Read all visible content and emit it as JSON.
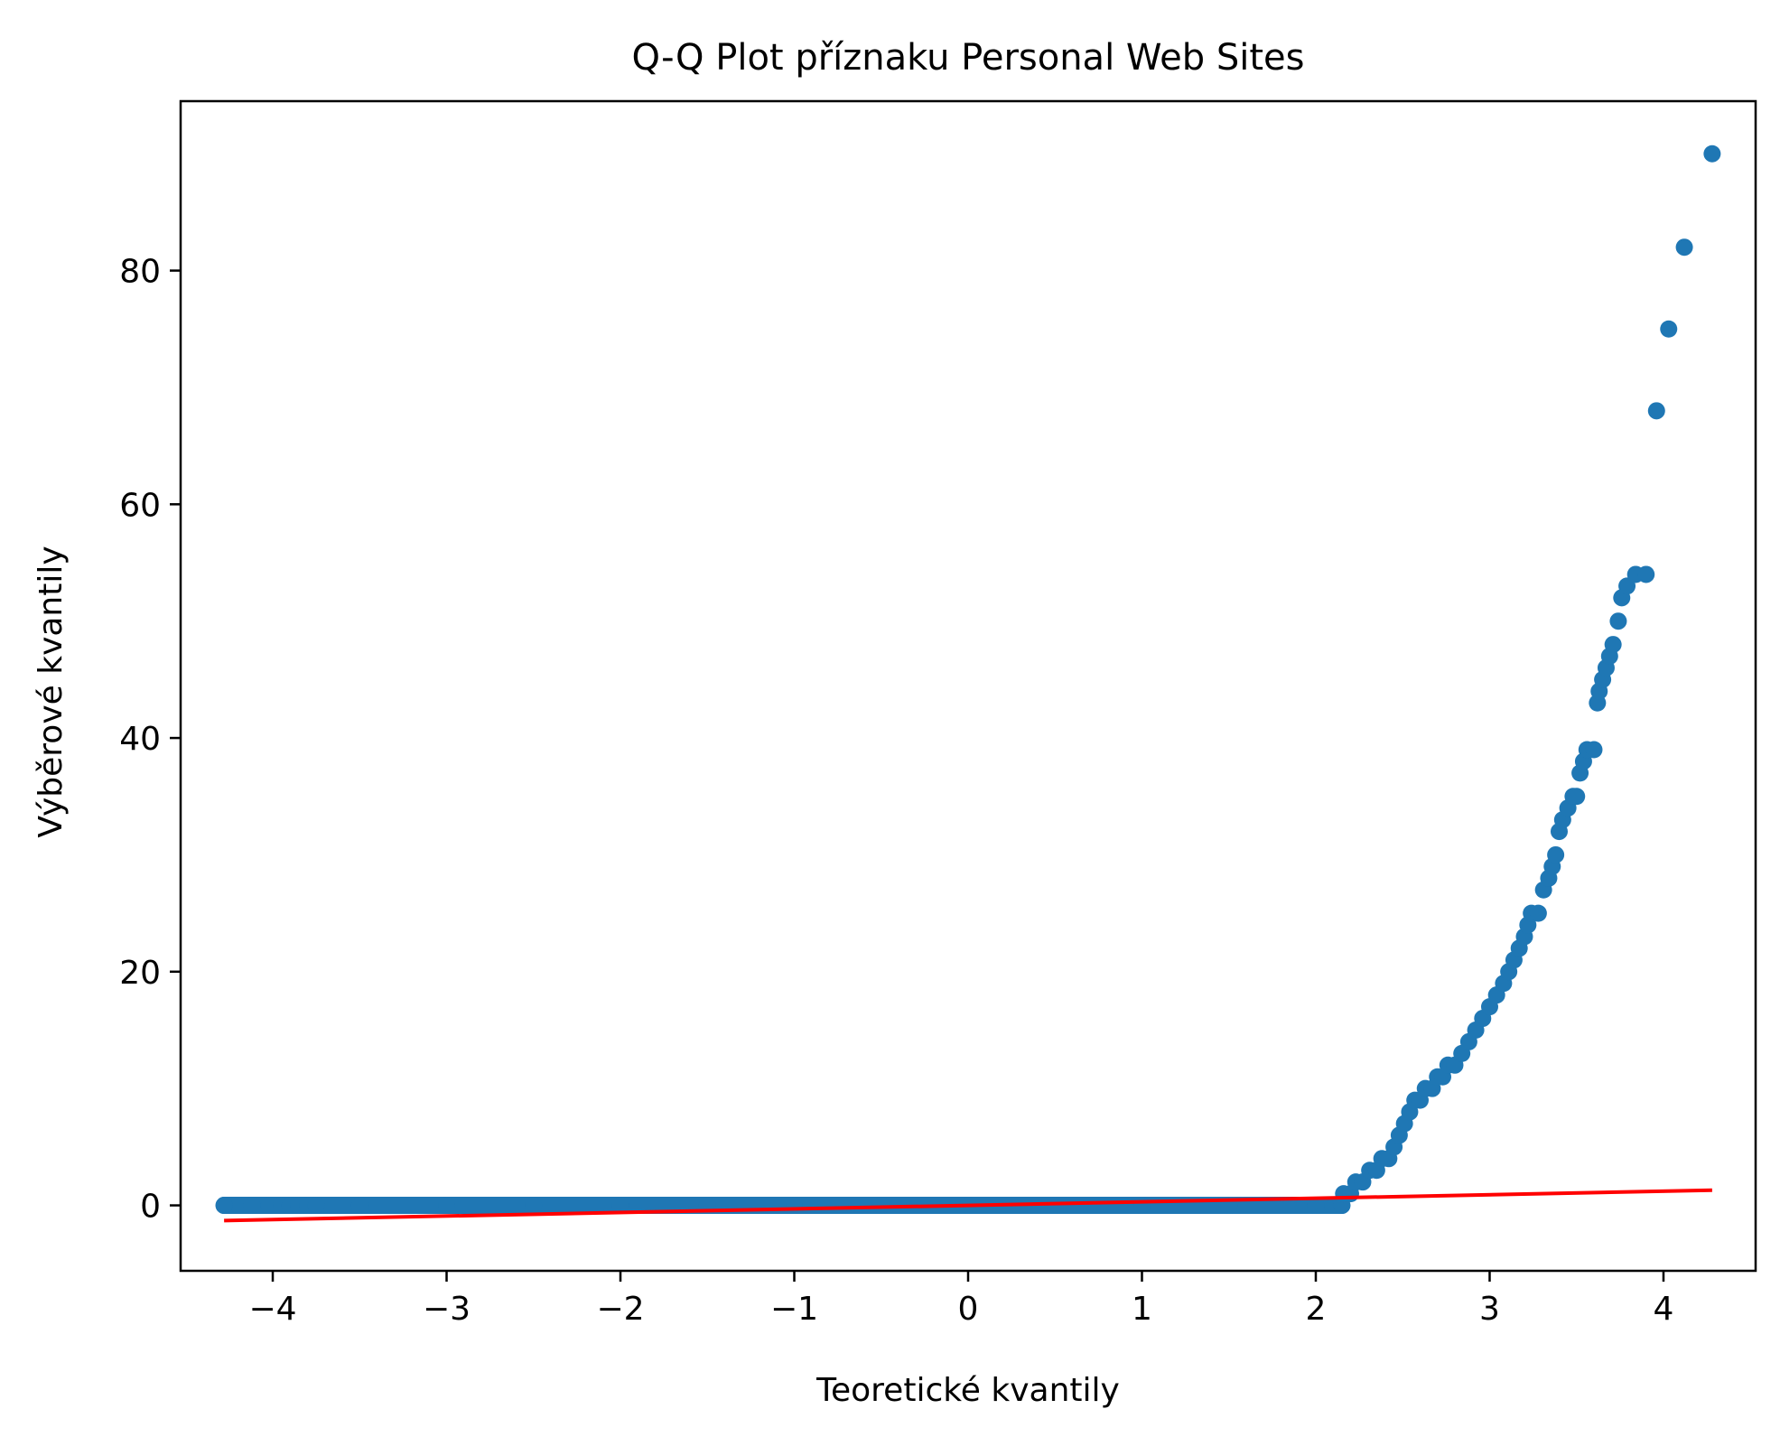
{
  "chart_data": {
    "type": "scatter",
    "title": "Q-Q Plot příznaku Personal Web Sites",
    "xlabel": "Teoretické kvantily",
    "ylabel": "Výběrové kvantily",
    "xlim": [
      -4.53,
      4.53
    ],
    "ylim": [
      -5.6,
      94.5
    ],
    "x_ticks": [
      -4,
      -3,
      -2,
      -1,
      0,
      1,
      2,
      3,
      4
    ],
    "x_tick_labels": [
      "−4",
      "−3",
      "−2",
      "−1",
      "0",
      "1",
      "2",
      "3",
      "4"
    ],
    "y_ticks": [
      0,
      20,
      40,
      60,
      80
    ],
    "y_tick_labels": [
      "0",
      "20",
      "40",
      "60",
      "80"
    ],
    "grid": false,
    "colors": {
      "points": "#1f77b4",
      "fit_line": "#ff0000"
    },
    "series": [
      {
        "type": "scatter",
        "points": [
          [
            -4.28,
            0
          ],
          [
            -4.12,
            0
          ],
          [
            -4.02,
            0
          ],
          [
            -3.95,
            0
          ],
          [
            -3.9,
            0
          ],
          [
            -3.85,
            0
          ],
          [
            -3.8,
            0
          ],
          [
            -3.75,
            0
          ],
          [
            -3.5,
            0
          ],
          [
            -3.0,
            0
          ],
          [
            -2.5,
            0
          ],
          [
            -2.0,
            0
          ],
          [
            -1.5,
            0
          ],
          [
            -1.0,
            0
          ],
          [
            -0.5,
            0
          ],
          [
            0,
            0
          ],
          [
            0.5,
            0
          ],
          [
            1.0,
            0
          ],
          [
            1.5,
            0
          ],
          [
            2.0,
            0
          ],
          [
            2.15,
            0
          ],
          [
            2.16,
            1
          ],
          [
            2.2,
            1
          ],
          [
            2.23,
            2
          ],
          [
            2.27,
            2
          ],
          [
            2.31,
            3
          ],
          [
            2.35,
            3
          ],
          [
            2.38,
            4
          ],
          [
            2.42,
            4
          ],
          [
            2.45,
            5
          ],
          [
            2.48,
            6
          ],
          [
            2.51,
            7
          ],
          [
            2.54,
            8
          ],
          [
            2.57,
            9
          ],
          [
            2.6,
            9
          ],
          [
            2.63,
            10
          ],
          [
            2.67,
            10
          ],
          [
            2.7,
            11
          ],
          [
            2.73,
            11
          ],
          [
            2.76,
            12
          ],
          [
            2.8,
            12
          ],
          [
            2.84,
            13
          ],
          [
            2.88,
            14
          ],
          [
            2.92,
            15
          ],
          [
            2.96,
            16
          ],
          [
            3.0,
            17
          ],
          [
            3.04,
            18
          ],
          [
            3.08,
            19
          ],
          [
            3.11,
            20
          ],
          [
            3.14,
            21
          ],
          [
            3.17,
            22
          ],
          [
            3.2,
            23
          ],
          [
            3.22,
            24
          ],
          [
            3.24,
            25
          ],
          [
            3.28,
            25
          ],
          [
            3.31,
            27
          ],
          [
            3.34,
            28
          ],
          [
            3.36,
            29
          ],
          [
            3.38,
            30
          ],
          [
            3.4,
            32
          ],
          [
            3.42,
            33
          ],
          [
            3.45,
            34
          ],
          [
            3.48,
            35
          ],
          [
            3.5,
            35
          ],
          [
            3.52,
            37
          ],
          [
            3.54,
            38
          ],
          [
            3.56,
            39
          ],
          [
            3.6,
            39
          ],
          [
            3.62,
            43
          ],
          [
            3.63,
            44
          ],
          [
            3.65,
            45
          ],
          [
            3.67,
            46
          ],
          [
            3.69,
            47
          ],
          [
            3.71,
            48
          ],
          [
            3.74,
            50
          ],
          [
            3.76,
            52
          ],
          [
            3.79,
            53
          ],
          [
            3.84,
            54
          ],
          [
            3.9,
            54
          ],
          [
            3.96,
            68
          ],
          [
            4.03,
            75
          ],
          [
            4.12,
            82
          ],
          [
            4.28,
            90
          ]
        ]
      },
      {
        "type": "line",
        "points": [
          [
            -4.28,
            -1.3
          ],
          [
            4.28,
            1.3
          ]
        ]
      }
    ]
  }
}
